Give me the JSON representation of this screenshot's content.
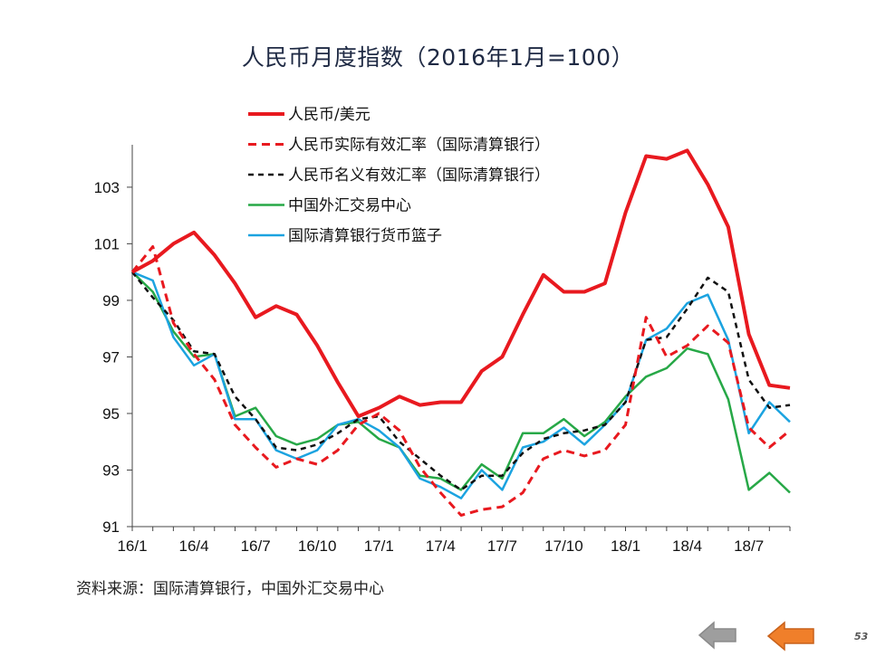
{
  "slide": {
    "title": "人民币月度指数（2016年1月=100）",
    "source": "资料来源：国际清算银行，中国外汇交易中心",
    "page_number": "53",
    "nav": {
      "prev_icon": "left-arrow-icon",
      "next_icon": "left-arrow-icon"
    },
    "colors": {
      "title": "#1f2a44",
      "prev_arrow": "#9e9e9e",
      "next_arrow": "#f07f2a"
    }
  },
  "chart_data": {
    "type": "line",
    "title": "人民币月度指数（2016年1月=100）",
    "xlabel": "",
    "ylabel": "",
    "ylim": [
      91,
      104.5
    ],
    "yticks": [
      91,
      93,
      95,
      97,
      99,
      101,
      103
    ],
    "x": [
      "16/1",
      "16/2",
      "16/3",
      "16/4",
      "16/5",
      "16/6",
      "16/7",
      "16/8",
      "16/9",
      "16/10",
      "16/11",
      "16/12",
      "17/1",
      "17/2",
      "17/3",
      "17/4",
      "17/5",
      "17/6",
      "17/7",
      "17/8",
      "17/9",
      "17/10",
      "17/11",
      "17/12",
      "18/1",
      "18/2",
      "18/3",
      "18/4",
      "18/5",
      "18/6",
      "18/7",
      "18/8",
      "18/9"
    ],
    "xtick_labels": [
      "16/1",
      "16/4",
      "16/7",
      "16/10",
      "17/1",
      "17/4",
      "17/7",
      "17/10",
      "18/1",
      "18/4",
      "18/7"
    ],
    "xtick_every": 3,
    "grid": false,
    "legend_position": "top-center",
    "series": [
      {
        "name": "人民币/美元",
        "color": "#e8191f",
        "dash": "solid",
        "width": 4,
        "values": [
          100,
          100.4,
          101.0,
          101.4,
          100.6,
          99.6,
          98.4,
          98.8,
          98.5,
          97.4,
          96.1,
          94.9,
          95.2,
          95.6,
          95.3,
          95.4,
          95.4,
          96.5,
          97.0,
          98.5,
          99.9,
          99.3,
          99.3,
          99.6,
          102.1,
          104.1,
          104.0,
          104.3,
          103.1,
          101.6,
          97.8,
          96.0,
          95.9
        ]
      },
      {
        "name": "人民币实际有效汇率（国际清算银行）",
        "color": "#e8191f",
        "dash": "dashed",
        "width": 3,
        "values": [
          100,
          100.9,
          98.2,
          97.1,
          96.2,
          94.6,
          93.8,
          93.1,
          93.4,
          93.2,
          93.7,
          94.6,
          95.0,
          94.4,
          93.1,
          92.2,
          91.4,
          91.6,
          91.7,
          92.2,
          93.4,
          93.7,
          93.5,
          93.7,
          94.6,
          98.4,
          97.0,
          97.4,
          98.1,
          97.5,
          94.5,
          93.8,
          94.4
        ]
      },
      {
        "name": "人民币名义有效汇率（国际清算银行）",
        "color": "#111111",
        "dash": "dashed",
        "width": 2.5,
        "values": [
          100,
          99.1,
          98.3,
          97.2,
          97.1,
          95.6,
          94.8,
          93.8,
          93.7,
          93.9,
          94.3,
          94.8,
          94.9,
          94.0,
          93.4,
          92.8,
          92.3,
          92.8,
          92.8,
          93.6,
          94.1,
          94.3,
          94.4,
          94.6,
          95.4,
          97.6,
          97.7,
          98.7,
          99.8,
          99.3,
          96.2,
          95.2,
          95.3
        ]
      },
      {
        "name": "中国外汇交易中心",
        "color": "#27a847",
        "dash": "solid",
        "width": 2.5,
        "values": [
          100,
          99.3,
          97.9,
          97.0,
          97.1,
          94.9,
          95.2,
          94.2,
          93.9,
          94.1,
          94.6,
          94.7,
          94.1,
          93.8,
          92.8,
          92.7,
          92.3,
          93.2,
          92.7,
          94.3,
          94.3,
          94.8,
          94.2,
          94.7,
          95.6,
          96.3,
          96.6,
          97.3,
          97.1,
          95.5,
          92.3,
          92.9,
          92.2
        ]
      },
      {
        "name": "国际清算银行货币篮子",
        "color": "#1ba3e0",
        "dash": "solid",
        "width": 2.5,
        "values": [
          100,
          99.7,
          97.7,
          96.7,
          97.1,
          94.8,
          94.8,
          93.7,
          93.4,
          93.7,
          94.6,
          94.8,
          94.4,
          93.8,
          92.7,
          92.4,
          92.0,
          93.0,
          92.3,
          93.8,
          94.0,
          94.5,
          93.9,
          94.6,
          95.4,
          97.6,
          98.0,
          98.9,
          99.2,
          97.6,
          94.3,
          95.4,
          94.7
        ]
      }
    ]
  }
}
